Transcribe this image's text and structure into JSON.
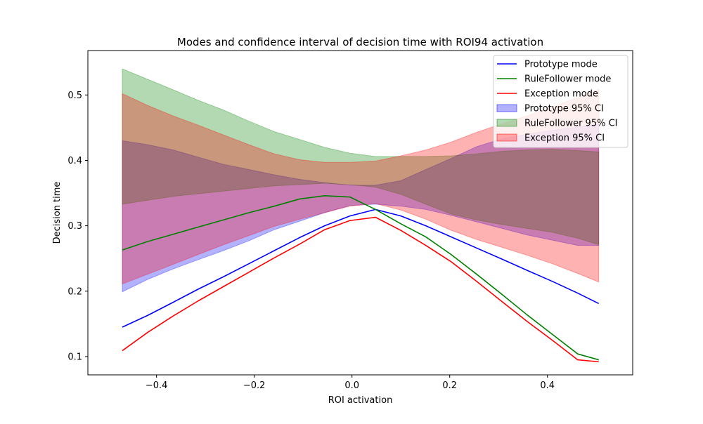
{
  "chart_data": {
    "type": "line",
    "title": "Modes and confidence interval of decision time with ROI94 activation",
    "xlabel": "ROI activation",
    "ylabel": "Decision time",
    "xlim": [
      -0.5405,
      0.5745
    ],
    "ylim": [
      0.072,
      0.568
    ],
    "xticks": [
      -0.4,
      -0.2,
      0.0,
      0.2,
      0.4
    ],
    "xtick_labels": [
      "−0.4",
      "−0.2",
      "0.0",
      "0.2",
      "0.4"
    ],
    "yticks": [
      0.1,
      0.2,
      0.3,
      0.4,
      0.5
    ],
    "ytick_labels": [
      "0.1",
      "0.2",
      "0.3",
      "0.4",
      "0.5"
    ],
    "grid": false,
    "legend_position": "top-right",
    "x": [
      -0.47,
      -0.418,
      -0.366,
      -0.315,
      -0.263,
      -0.211,
      -0.159,
      -0.107,
      -0.056,
      -0.004,
      0.048,
      0.1,
      0.151,
      0.203,
      0.255,
      0.307,
      0.358,
      0.41,
      0.462,
      0.505
    ],
    "series": [
      {
        "name": "Prototype mode",
        "kind": "line",
        "color": "#0000ff",
        "values": [
          0.145,
          0.163,
          0.183,
          0.203,
          0.222,
          0.242,
          0.262,
          0.282,
          0.3,
          0.315,
          0.325,
          0.315,
          0.3,
          0.283,
          0.266,
          0.249,
          0.232,
          0.215,
          0.197,
          0.181
        ]
      },
      {
        "name": "RuleFollower mode",
        "kind": "line",
        "color": "#008000",
        "values": [
          0.263,
          0.276,
          0.287,
          0.298,
          0.309,
          0.32,
          0.33,
          0.341,
          0.346,
          0.344,
          0.325,
          0.303,
          0.283,
          0.256,
          0.226,
          0.195,
          0.164,
          0.134,
          0.104,
          0.095
        ]
      },
      {
        "name": "Exception mode",
        "kind": "line",
        "color": "#ff0000",
        "values": [
          0.109,
          0.137,
          0.162,
          0.185,
          0.207,
          0.229,
          0.251,
          0.272,
          0.294,
          0.308,
          0.313,
          0.293,
          0.27,
          0.245,
          0.215,
          0.184,
          0.154,
          0.125,
          0.095,
          0.092
        ]
      },
      {
        "name": "Prototype 95% CI",
        "kind": "band",
        "color": "#0000ff",
        "opacity": 0.3,
        "lower": [
          0.199,
          0.218,
          0.234,
          0.248,
          0.262,
          0.277,
          0.294,
          0.307,
          0.32,
          0.331,
          0.333,
          0.33,
          0.325,
          0.316,
          0.306,
          0.296,
          0.286,
          0.278,
          0.27,
          0.27
        ],
        "upper": [
          0.43,
          0.424,
          0.416,
          0.405,
          0.394,
          0.386,
          0.378,
          0.371,
          0.366,
          0.362,
          0.362,
          0.369,
          0.386,
          0.403,
          0.421,
          0.433,
          0.44,
          0.446,
          0.451,
          0.456
        ]
      },
      {
        "name": "RuleFollower 95% CI",
        "kind": "band",
        "color": "#008000",
        "opacity": 0.3,
        "lower": [
          0.333,
          0.339,
          0.345,
          0.349,
          0.353,
          0.357,
          0.361,
          0.363,
          0.365,
          0.363,
          0.359,
          0.348,
          0.333,
          0.318,
          0.309,
          0.302,
          0.296,
          0.29,
          0.281,
          0.271
        ],
        "upper": [
          0.54,
          0.524,
          0.508,
          0.492,
          0.477,
          0.46,
          0.444,
          0.432,
          0.42,
          0.411,
          0.406,
          0.406,
          0.406,
          0.407,
          0.41,
          0.414,
          0.416,
          0.417,
          0.415,
          0.413
        ]
      },
      {
        "name": "Exception 95% CI",
        "kind": "band",
        "color": "#ff0000",
        "opacity": 0.3,
        "lower": [
          0.211,
          0.226,
          0.241,
          0.256,
          0.271,
          0.285,
          0.299,
          0.31,
          0.32,
          0.33,
          0.334,
          0.324,
          0.31,
          0.293,
          0.279,
          0.267,
          0.255,
          0.242,
          0.227,
          0.214
        ],
        "upper": [
          0.502,
          0.484,
          0.468,
          0.454,
          0.439,
          0.424,
          0.41,
          0.401,
          0.397,
          0.397,
          0.399,
          0.407,
          0.416,
          0.428,
          0.443,
          0.456,
          0.468,
          0.482,
          0.496,
          0.509
        ]
      }
    ]
  }
}
